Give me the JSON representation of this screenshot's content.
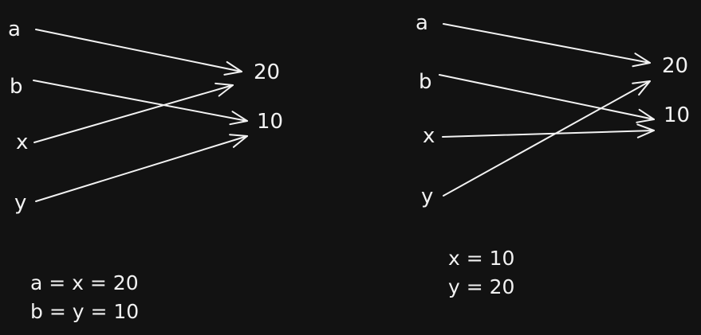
{
  "left_panel": {
    "sources": [
      "a",
      "b",
      "x",
      "y"
    ],
    "targets": [
      "20",
      "10"
    ],
    "arrows": [
      [
        "a",
        "20"
      ],
      [
        "b",
        "10"
      ],
      [
        "x",
        "20"
      ],
      [
        "y",
        "10"
      ]
    ],
    "equations": [
      "a = x = 20",
      "b = y = 10"
    ]
  },
  "right_panel": {
    "sources": [
      "a",
      "b",
      "x",
      "y"
    ],
    "targets": [
      "20",
      "10"
    ],
    "arrows": [
      [
        "a",
        "20"
      ],
      [
        "b",
        "10"
      ],
      [
        "x",
        "10"
      ],
      [
        "y",
        "20"
      ]
    ],
    "equations": [
      "x = 10",
      "y = 20"
    ]
  },
  "colors": {
    "background": "#121212",
    "ink": "#f2f2f2"
  }
}
